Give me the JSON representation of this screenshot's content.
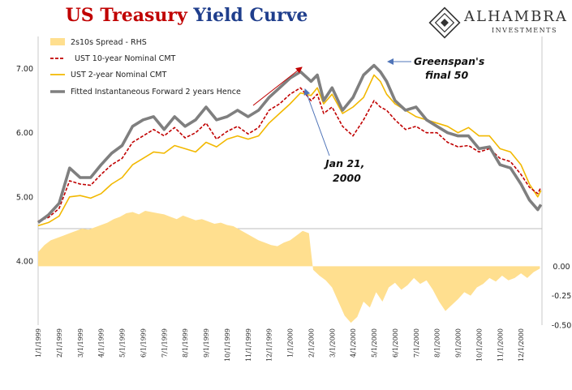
{
  "title": {
    "part1": "US Treasury",
    "part2": "Yield Curve"
  },
  "logo": {
    "name": "ALHAMBRA",
    "sub": "INVESTMENTS"
  },
  "colors": {
    "spread": "#ffdf8f",
    "ten_year": "#c00000",
    "two_year": "#f2b800",
    "forward": "#7f7f7f",
    "arrow_red": "#c00000",
    "arrow_blue": "#4f74b8"
  },
  "chart_data": {
    "type": "line",
    "title": "US Treasury Yield Curve",
    "legend_position": "top-left",
    "y_left": {
      "min": 3.0,
      "max": 7.5,
      "ticks": [
        "4.00",
        "5.00",
        "6.00",
        "7.00"
      ],
      "tick_values": [
        4,
        5,
        6,
        7
      ]
    },
    "y_right": {
      "min": -0.5,
      "max": 1.95,
      "ticks": [
        "0.00",
        "-0.25",
        "-0.50"
      ],
      "tick_values": [
        0,
        -0.25,
        -0.5
      ]
    },
    "x_ticks": [
      "1/1/1999",
      "2/1/1999",
      "3/1/1999",
      "4/1/1999",
      "5/1/1999",
      "6/1/1999",
      "7/1/1999",
      "8/1/1999",
      "9/1/1999",
      "10/1/1999",
      "11/1/1999",
      "12/1/1999",
      "1/1/2000",
      "2/1/2000",
      "3/1/2000",
      "4/1/2000",
      "5/1/2000",
      "6/1/2000",
      "7/1/2000",
      "8/1/2000",
      "9/1/2000",
      "10/1/2000",
      "11/1/2000",
      "12/1/2000"
    ],
    "x_tick_months": [
      0,
      1,
      2,
      3,
      4,
      5,
      6,
      7,
      8,
      9,
      10,
      11,
      12,
      13,
      14,
      15,
      16,
      17,
      18,
      19,
      20,
      21,
      22,
      23
    ],
    "series": [
      {
        "name": "2s10s Spread - RHS",
        "kind": "area",
        "axis": "right",
        "x": [
          0,
          0.3,
          0.6,
          0.9,
          1.2,
          1.5,
          1.8,
          2.1,
          2.4,
          2.7,
          3.0,
          3.3,
          3.6,
          3.9,
          4.2,
          4.5,
          4.8,
          5.1,
          5.4,
          5.7,
          6.0,
          6.3,
          6.6,
          6.9,
          7.2,
          7.5,
          7.8,
          8.1,
          8.4,
          8.7,
          9.0,
          9.3,
          9.6,
          9.9,
          10.2,
          10.5,
          10.8,
          11.1,
          11.4,
          11.7,
          12.0,
          12.3,
          12.6,
          12.9,
          13.0,
          13.1,
          13.4,
          13.7,
          14.0,
          14.3,
          14.6,
          14.9,
          15.2,
          15.5,
          15.8,
          16.1,
          16.4,
          16.7,
          17.0,
          17.3,
          17.6,
          17.9,
          18.2,
          18.5,
          18.8,
          19.1,
          19.4,
          19.7,
          20.0,
          20.3,
          20.6,
          20.9,
          21.2,
          21.5,
          21.8,
          22.1,
          22.4,
          22.7,
          23.0,
          23.3,
          23.6,
          23.9
        ],
        "y": [
          0.12,
          0.18,
          0.22,
          0.24,
          0.26,
          0.28,
          0.3,
          0.32,
          0.31,
          0.33,
          0.35,
          0.37,
          0.4,
          0.42,
          0.45,
          0.46,
          0.44,
          0.47,
          0.46,
          0.45,
          0.44,
          0.42,
          0.4,
          0.43,
          0.41,
          0.39,
          0.4,
          0.38,
          0.36,
          0.37,
          0.35,
          0.34,
          0.31,
          0.28,
          0.25,
          0.22,
          0.2,
          0.18,
          0.17,
          0.2,
          0.22,
          0.26,
          0.3,
          0.28,
          0.12,
          -0.03,
          -0.08,
          -0.12,
          -0.18,
          -0.3,
          -0.42,
          -0.48,
          -0.43,
          -0.3,
          -0.35,
          -0.22,
          -0.3,
          -0.18,
          -0.14,
          -0.2,
          -0.16,
          -0.1,
          -0.15,
          -0.12,
          -0.2,
          -0.3,
          -0.38,
          -0.33,
          -0.28,
          -0.22,
          -0.25,
          -0.18,
          -0.15,
          -0.1,
          -0.13,
          -0.08,
          -0.12,
          -0.1,
          -0.06,
          -0.1,
          -0.05,
          -0.02
        ]
      },
      {
        "name": "UST 10-year Nominal CMT",
        "kind": "line",
        "axis": "left",
        "x": [
          0,
          0.5,
          1.0,
          1.5,
          2.0,
          2.5,
          3.0,
          3.5,
          4.0,
          4.5,
          5.0,
          5.5,
          6.0,
          6.5,
          7.0,
          7.5,
          8.0,
          8.5,
          9.0,
          9.5,
          10.0,
          10.5,
          11.0,
          11.5,
          12.0,
          12.5,
          13.0,
          13.3,
          13.6,
          14.0,
          14.5,
          15.0,
          15.5,
          16.0,
          16.3,
          16.6,
          17.0,
          17.5,
          18.0,
          18.5,
          19.0,
          19.5,
          20.0,
          20.5,
          21.0,
          21.5,
          22.0,
          22.5,
          23.0,
          23.4,
          23.8,
          23.95
        ],
        "y": [
          4.62,
          4.68,
          4.82,
          5.25,
          5.2,
          5.18,
          5.35,
          5.5,
          5.6,
          5.85,
          5.95,
          6.05,
          5.95,
          6.08,
          5.92,
          6.0,
          6.15,
          5.9,
          6.02,
          6.1,
          5.98,
          6.08,
          6.35,
          6.45,
          6.6,
          6.7,
          6.5,
          6.6,
          6.3,
          6.4,
          6.1,
          5.95,
          6.2,
          6.5,
          6.4,
          6.35,
          6.2,
          6.05,
          6.1,
          6.0,
          6.0,
          5.85,
          5.78,
          5.8,
          5.7,
          5.75,
          5.6,
          5.55,
          5.35,
          5.15,
          5.05,
          5.15
        ]
      },
      {
        "name": "UST 2-year Nominal CMT",
        "kind": "line",
        "axis": "left",
        "x": [
          0,
          0.5,
          1.0,
          1.5,
          2.0,
          2.5,
          3.0,
          3.5,
          4.0,
          4.5,
          5.0,
          5.5,
          6.0,
          6.5,
          7.0,
          7.5,
          8.0,
          8.5,
          9.0,
          9.5,
          10.0,
          10.5,
          11.0,
          11.5,
          12.0,
          12.5,
          13.0,
          13.3,
          13.6,
          14.0,
          14.5,
          15.0,
          15.5,
          16.0,
          16.3,
          16.6,
          17.0,
          17.5,
          18.0,
          18.5,
          19.0,
          19.5,
          20.0,
          20.5,
          21.0,
          21.5,
          22.0,
          22.5,
          23.0,
          23.4,
          23.8,
          23.95
        ],
        "y": [
          4.55,
          4.6,
          4.7,
          5.0,
          5.02,
          4.98,
          5.05,
          5.2,
          5.3,
          5.5,
          5.6,
          5.7,
          5.68,
          5.8,
          5.75,
          5.7,
          5.85,
          5.78,
          5.9,
          5.95,
          5.9,
          5.95,
          6.15,
          6.3,
          6.45,
          6.62,
          6.58,
          6.7,
          6.45,
          6.6,
          6.3,
          6.4,
          6.55,
          6.9,
          6.8,
          6.6,
          6.45,
          6.35,
          6.25,
          6.2,
          6.15,
          6.1,
          6.0,
          6.08,
          5.95,
          5.95,
          5.75,
          5.7,
          5.5,
          5.2,
          5.0,
          5.1
        ]
      },
      {
        "name": "Fitted Instantaneous Forward 2 years Hence",
        "kind": "line",
        "axis": "left",
        "x": [
          0,
          0.5,
          1.0,
          1.5,
          2.0,
          2.5,
          3.0,
          3.5,
          4.0,
          4.5,
          5.0,
          5.5,
          6.0,
          6.5,
          7.0,
          7.5,
          8.0,
          8.5,
          9.0,
          9.5,
          10.0,
          10.5,
          11.0,
          11.5,
          12.0,
          12.5,
          13.0,
          13.3,
          13.6,
          14.0,
          14.5,
          15.0,
          15.5,
          16.0,
          16.3,
          16.6,
          17.0,
          17.5,
          18.0,
          18.5,
          19.0,
          19.5,
          20.0,
          20.5,
          21.0,
          21.5,
          22.0,
          22.5,
          23.0,
          23.4,
          23.8,
          23.95
        ],
        "y": [
          4.6,
          4.72,
          4.9,
          5.45,
          5.3,
          5.3,
          5.5,
          5.68,
          5.8,
          6.1,
          6.2,
          6.25,
          6.05,
          6.25,
          6.1,
          6.2,
          6.4,
          6.2,
          6.25,
          6.35,
          6.25,
          6.35,
          6.55,
          6.7,
          6.85,
          6.95,
          6.8,
          6.9,
          6.5,
          6.7,
          6.35,
          6.55,
          6.9,
          7.05,
          6.95,
          6.8,
          6.5,
          6.35,
          6.4,
          6.2,
          6.1,
          6.0,
          5.95,
          5.95,
          5.75,
          5.78,
          5.5,
          5.45,
          5.2,
          4.95,
          4.8,
          4.88
        ]
      }
    ],
    "annotations": [
      {
        "text": "Greenspan's",
        "text2": "final 50"
      },
      {
        "text": "Jan 21,",
        "text2": "2000"
      }
    ]
  }
}
